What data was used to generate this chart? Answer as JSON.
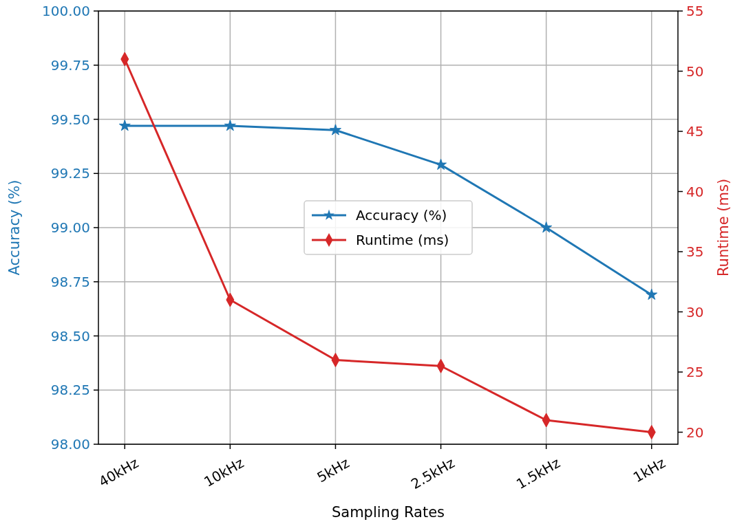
{
  "chart_data": {
    "type": "line",
    "xlabel": "Sampling Rates",
    "ylabel": "Accuracy (%)",
    "y2label": "Runtime (ms)",
    "categories": [
      "40kHz",
      "10kHz",
      "5kHz",
      "2.5kHz",
      "1.5kHz",
      "1kHz"
    ],
    "series": [
      {
        "name": "Accuracy (%)",
        "color": "#1f77b4",
        "marker": "star",
        "values": [
          99.47,
          99.47,
          99.45,
          99.29,
          99.0,
          98.69
        ]
      },
      {
        "name": "Runtime (ms)",
        "color": "#d62728",
        "marker": "diamond",
        "axis": "y2",
        "values": [
          51,
          31,
          26,
          25.5,
          21,
          20
        ]
      }
    ],
    "ylim": [
      98,
      100
    ],
    "yticks": [
      {
        "value": 98,
        "label": "98.00"
      },
      {
        "value": 98.25,
        "label": "98.25"
      },
      {
        "value": 98.5,
        "label": "98.50"
      },
      {
        "value": 98.75,
        "label": "98.75"
      },
      {
        "value": 99,
        "label": "99.00"
      },
      {
        "value": 99.25,
        "label": "99.25"
      },
      {
        "value": 99.5,
        "label": "99.50"
      },
      {
        "value": 99.75,
        "label": "99.75"
      },
      {
        "value": 100,
        "label": "100.00"
      }
    ],
    "y2lim": [
      19,
      55
    ],
    "y2ticks": [
      20,
      25,
      30,
      35,
      40,
      45,
      50,
      55
    ],
    "grid": true,
    "legend": "center",
    "line_style": "solid"
  }
}
